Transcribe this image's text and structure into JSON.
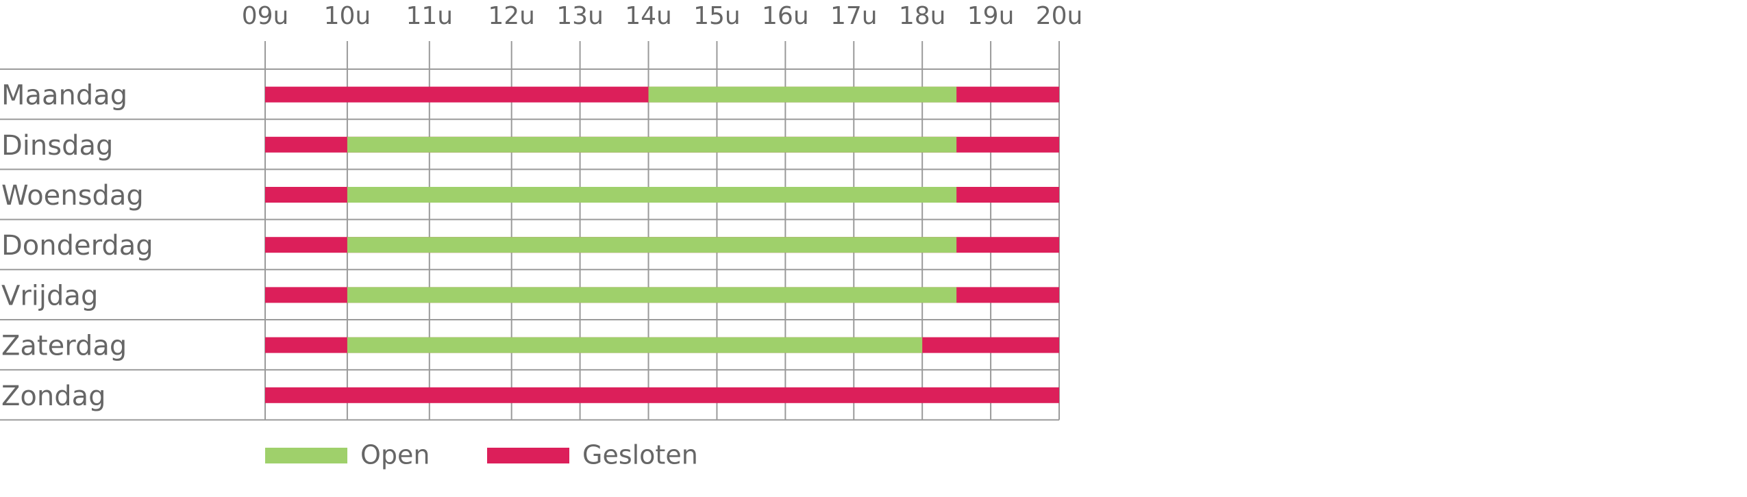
{
  "chart_data": {
    "type": "timeline",
    "categories": [
      "Maandag",
      "Dinsdag",
      "Woensdag",
      "Donderdag",
      "Vrijdag",
      "Zaterdag",
      "Zondag"
    ],
    "series": [
      {
        "name": "Open",
        "color": "#9fd06b",
        "values": [
          [
            14,
            18.5
          ],
          [
            10,
            18.5
          ],
          [
            10,
            18.5
          ],
          [
            10,
            18.5
          ],
          [
            10,
            18.5
          ],
          [
            10,
            18
          ],
          null
        ]
      },
      {
        "name": "Gesloten",
        "color": "#dc1f5a"
      }
    ],
    "xlim": [
      9,
      20
    ],
    "xticks": [
      {
        "value": 9,
        "label": "09u"
      },
      {
        "value": 10,
        "label": "10u"
      },
      {
        "value": 11,
        "label": "11u"
      },
      {
        "value": 12,
        "label": "12u"
      },
      {
        "value": 13,
        "label": "13u"
      },
      {
        "value": 14,
        "label": "14u"
      },
      {
        "value": 15,
        "label": "15u"
      },
      {
        "value": 16,
        "label": "16u"
      },
      {
        "value": 17,
        "label": "17u"
      },
      {
        "value": 18,
        "label": "18u"
      },
      {
        "value": 19,
        "label": "19u"
      },
      {
        "value": 20,
        "label": "20u"
      }
    ],
    "grid": true
  }
}
